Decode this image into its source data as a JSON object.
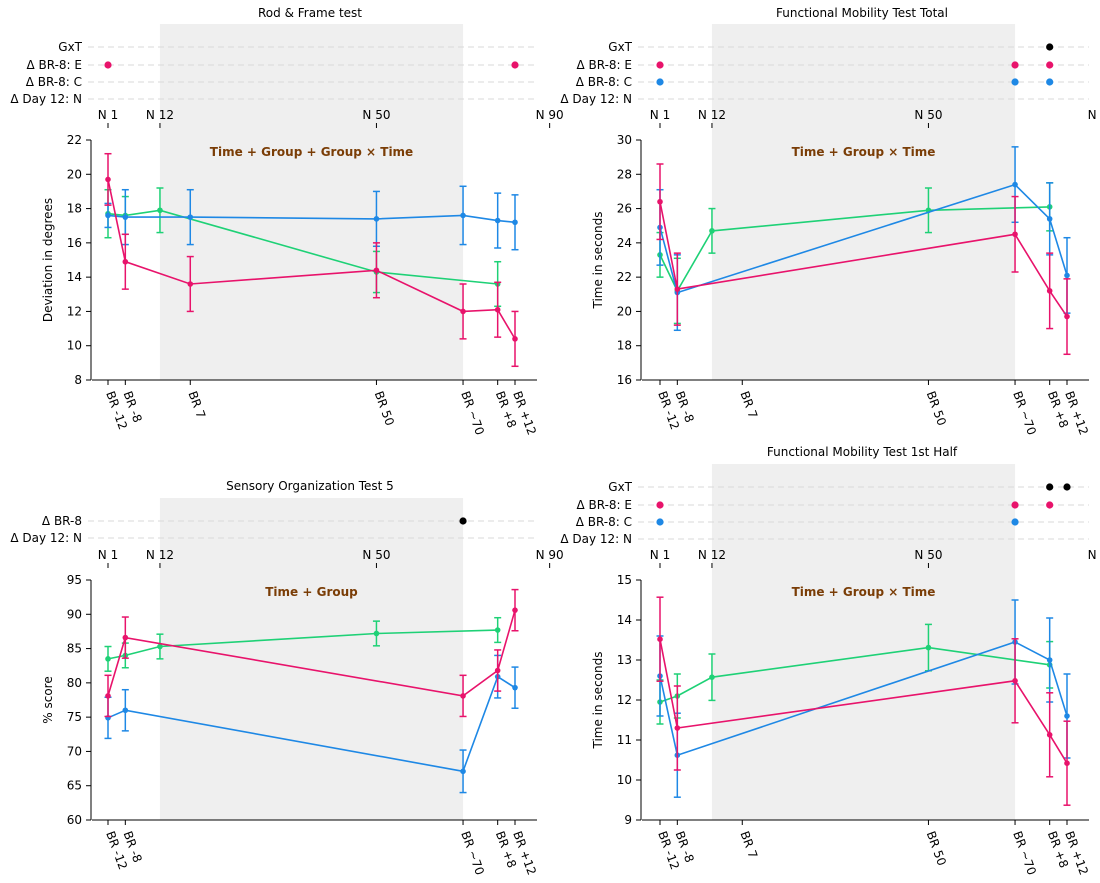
{
  "colors": {
    "green": "#1ed176",
    "blue": "#1e88e5",
    "magenta": "#e8136b",
    "black": "#000000",
    "shade": "#efefef",
    "annotation": "#7a3d06",
    "grid": "#d9d9d9"
  },
  "session_labels": [
    "N 1",
    "N 12",
    "N 50",
    "N 90"
  ],
  "session_days": [
    -12,
    0,
    50,
    90
  ],
  "bed_rest_tick_positions": [
    -12,
    -8,
    7,
    50,
    70,
    78,
    82
  ],
  "bed_rest_tick_labels": [
    "BR -12",
    "BR -8",
    "BR 7",
    "BR 50",
    "BR ~70",
    "BR +8",
    "BR +12"
  ],
  "shade_range": [
    0,
    70
  ],
  "x_range": [
    -16,
    86
  ],
  "series_names": [
    "green",
    "blue",
    "magenta"
  ],
  "chart_data": [
    {
      "type": "line",
      "title": "Rod & Frame test",
      "ylabel": "Deviation in degrees",
      "ylim": [
        8,
        22
      ],
      "yticks": [
        8,
        10,
        12,
        14,
        16,
        18,
        20,
        22
      ],
      "annotation": "Time + Group + Group × Time",
      "tick_indices": [
        0,
        1,
        2,
        3,
        4,
        5,
        6
      ],
      "sig_rows": [
        {
          "label": "GxT",
          "dots": []
        },
        {
          "label": "Δ BR-8: E",
          "dots": [
            {
              "x": -12,
              "color": "magenta"
            },
            {
              "x": 82,
              "color": "magenta"
            }
          ]
        },
        {
          "label": "Δ BR-8: C",
          "dots": []
        },
        {
          "label": "Δ Day 12: N",
          "dots": []
        }
      ],
      "series": [
        {
          "name": "green",
          "x": [
            -12,
            -8,
            0,
            50,
            78
          ],
          "y": [
            17.7,
            17.6,
            17.9,
            14.3,
            13.6
          ],
          "err": [
            1.4,
            1.1,
            1.3,
            1.2,
            1.3
          ]
        },
        {
          "name": "blue",
          "x": [
            -12,
            -8,
            7,
            50,
            70,
            78,
            82
          ],
          "y": [
            17.6,
            17.5,
            17.5,
            17.4,
            17.6,
            17.3,
            17.2
          ],
          "err": [
            0.7,
            1.6,
            1.6,
            1.6,
            1.7,
            1.6,
            1.6
          ]
        },
        {
          "name": "magenta",
          "x": [
            -12,
            -8,
            7,
            50,
            70,
            78,
            82
          ],
          "y": [
            19.7,
            14.9,
            13.6,
            14.4,
            12.0,
            12.1,
            10.4
          ],
          "err": [
            1.5,
            1.6,
            1.6,
            1.6,
            1.6,
            1.6,
            1.6
          ]
        }
      ]
    },
    {
      "type": "line",
      "title": "Functional Mobility Test Total",
      "ylabel": "Time in seconds",
      "ylim": [
        16,
        30
      ],
      "yticks": [
        16,
        18,
        20,
        22,
        24,
        26,
        28,
        30
      ],
      "annotation": "Time + Group × Time",
      "tick_indices": [
        0,
        1,
        2,
        3,
        4,
        5,
        6
      ],
      "sig_rows": [
        {
          "label": "GxT",
          "dots": [
            {
              "x": 78,
              "color": "black"
            }
          ]
        },
        {
          "label": "Δ BR-8: E",
          "dots": [
            {
              "x": -12,
              "color": "magenta"
            },
            {
              "x": 70,
              "color": "magenta"
            },
            {
              "x": 78,
              "color": "magenta"
            }
          ]
        },
        {
          "label": "Δ BR-8: C",
          "dots": [
            {
              "x": -12,
              "color": "blue"
            },
            {
              "x": 70,
              "color": "blue"
            },
            {
              "x": 78,
              "color": "blue"
            }
          ]
        },
        {
          "label": "Δ Day 12: N",
          "dots": []
        }
      ],
      "series": [
        {
          "name": "green",
          "x": [
            -12,
            -8,
            0,
            50,
            78
          ],
          "y": [
            23.3,
            21.2,
            24.7,
            25.9,
            26.1
          ],
          "err": [
            1.3,
            1.9,
            1.3,
            1.3,
            1.4
          ]
        },
        {
          "name": "blue",
          "x": [
            -12,
            -8,
            70,
            78,
            82
          ],
          "y": [
            24.9,
            21.1,
            27.4,
            25.4,
            22.1
          ],
          "err": [
            2.2,
            2.2,
            2.2,
            2.1,
            2.2
          ]
        },
        {
          "name": "magenta",
          "x": [
            -12,
            -8,
            70,
            78,
            82
          ],
          "y": [
            26.4,
            21.3,
            24.5,
            21.2,
            19.7
          ],
          "err": [
            2.2,
            2.1,
            2.2,
            2.2,
            2.2
          ]
        }
      ]
    },
    {
      "type": "line",
      "title": "Sensory Organization Test 5",
      "ylabel": "% score",
      "ylim": [
        60,
        95
      ],
      "yticks": [
        60,
        65,
        70,
        75,
        80,
        85,
        90,
        95
      ],
      "annotation": "Time + Group",
      "tick_indices": [
        0,
        1,
        4,
        5,
        6
      ],
      "sig_rows": [
        {
          "label": "Δ BR-8",
          "dots": [
            {
              "x": 70,
              "color": "black"
            }
          ]
        },
        {
          "label": "Δ Day 12: N",
          "dots": []
        }
      ],
      "series": [
        {
          "name": "green",
          "x": [
            -12,
            -8,
            0,
            50,
            78
          ],
          "y": [
            83.5,
            84.0,
            85.3,
            87.2,
            87.7
          ],
          "err": [
            1.8,
            1.8,
            1.8,
            1.8,
            1.8
          ]
        },
        {
          "name": "blue",
          "x": [
            -12,
            -8,
            70,
            78,
            82
          ],
          "y": [
            74.9,
            76.0,
            67.1,
            80.9,
            79.3
          ],
          "err": [
            3.0,
            3.0,
            3.1,
            3.1,
            3.0
          ]
        },
        {
          "name": "magenta",
          "x": [
            -12,
            -8,
            70,
            78,
            82
          ],
          "y": [
            78.1,
            86.6,
            78.1,
            81.8,
            90.6
          ],
          "err": [
            3.0,
            3.0,
            3.0,
            3.0,
            3.0
          ]
        }
      ]
    },
    {
      "type": "line",
      "title": "Functional Mobility Test 1st Half",
      "ylabel": "Time in seconds",
      "ylim": [
        9,
        15
      ],
      "yticks": [
        9,
        10,
        11,
        12,
        13,
        14,
        15
      ],
      "annotation": "Time + Group × Time",
      "tick_indices": [
        0,
        1,
        2,
        3,
        4,
        5,
        6
      ],
      "sig_rows": [
        {
          "label": "GxT",
          "dots": [
            {
              "x": 78,
              "color": "black"
            },
            {
              "x": 82,
              "color": "black"
            }
          ]
        },
        {
          "label": "Δ BR-8: E",
          "dots": [
            {
              "x": -12,
              "color": "magenta"
            },
            {
              "x": 70,
              "color": "magenta"
            },
            {
              "x": 78,
              "color": "magenta"
            }
          ]
        },
        {
          "label": "Δ BR-8: C",
          "dots": [
            {
              "x": -12,
              "color": "blue"
            },
            {
              "x": 70,
              "color": "blue"
            }
          ]
        },
        {
          "label": "Δ Day 12: N",
          "dots": []
        }
      ],
      "series": [
        {
          "name": "green",
          "x": [
            -12,
            -8,
            0,
            50,
            78
          ],
          "y": [
            11.95,
            12.1,
            12.57,
            13.31,
            12.88
          ],
          "err": [
            0.55,
            0.55,
            0.58,
            0.58,
            0.58
          ]
        },
        {
          "name": "blue",
          "x": [
            -12,
            -8,
            70,
            78,
            82
          ],
          "y": [
            12.6,
            10.62,
            13.45,
            13.0,
            11.6
          ],
          "err": [
            1.0,
            1.05,
            1.05,
            1.05,
            1.05
          ]
        },
        {
          "name": "magenta",
          "x": [
            -12,
            -8,
            70,
            78,
            82
          ],
          "y": [
            13.52,
            11.3,
            12.48,
            11.13,
            10.42
          ],
          "err": [
            1.05,
            1.05,
            1.05,
            1.05,
            1.05
          ]
        }
      ]
    }
  ]
}
